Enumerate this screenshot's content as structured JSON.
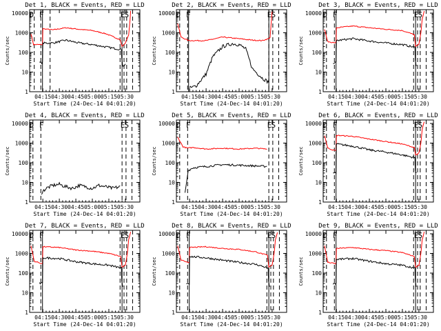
{
  "figure": {
    "x_tick_labels": [
      "04:15",
      "04:30",
      "04:45",
      "05:00",
      "05:15",
      "05:30"
    ],
    "y_tick_labels": [
      "1",
      "10",
      "100",
      "1000",
      "10000"
    ],
    "xlabel": "Start Time (24-Dec-14 04:01:20)",
    "ylabel": "Counts/sec",
    "colors": {
      "events": "#000000",
      "lld": "#ff0000",
      "frame": "#000000"
    }
  },
  "chart_data": [
    {
      "type": "line",
      "title": "Det 1, BLACK = Events, RED = LLD",
      "xlabel": "Start Time (24-Dec-14 04:01:20)",
      "ylabel": "Counts/sec",
      "xlim": [
        4.05,
        5.72
      ],
      "ylim": [
        1,
        15000
      ],
      "yscale": "log",
      "xticks": [
        4.25,
        4.5,
        4.75,
        5.0,
        5.25,
        5.5
      ],
      "region_labels": [
        {
          "text": "D",
          "x": 4.08
        },
        {
          "text": "F",
          "x": 4.23
        },
        {
          "text": "E",
          "x": 5.46
        },
        {
          "text": "S",
          "x": 5.52
        }
      ],
      "dashed_lines": [
        4.12,
        4.22,
        4.36,
        5.42,
        5.48,
        5.52,
        5.61
      ],
      "solid_lines": [
        4.245,
        5.45
      ],
      "series": [
        {
          "name": "LLD",
          "color": "#ff0000",
          "x": [
            4.07,
            4.11,
            4.245,
            4.25,
            4.4,
            4.6,
            4.8,
            5.0,
            5.2,
            5.42,
            5.45,
            5.5,
            5.55,
            5.57,
            5.58
          ],
          "y": [
            900,
            250,
            250,
            1600,
            1400,
            1800,
            1500,
            1300,
            900,
            450,
            200,
            300,
            800,
            4000,
            13000
          ]
        },
        {
          "name": "Events",
          "color": "#000000",
          "x": [
            4.2,
            4.245,
            4.25,
            4.4,
            4.6,
            4.8,
            5.0,
            5.2,
            5.44,
            5.445,
            5.46,
            5.5
          ],
          "y": [
            30,
            30,
            300,
            300,
            420,
            300,
            250,
            190,
            140,
            50,
            20,
            25
          ]
        }
      ]
    },
    {
      "type": "line",
      "title": "Det 2, BLACK = Events, RED = LLD",
      "xlabel": "Start Time (24-Dec-14 04:01:20)",
      "ylabel": "Counts/sec",
      "xlim": [
        4.05,
        5.72
      ],
      "ylim": [
        1,
        15000
      ],
      "yscale": "log",
      "xticks": [
        4.25,
        4.5,
        4.75,
        5.0,
        5.25,
        5.5
      ],
      "region_labels": [
        {
          "text": "D",
          "x": 4.08
        },
        {
          "text": "F",
          "x": 4.23
        },
        {
          "text": "E",
          "x": 5.46
        },
        {
          "text": "S",
          "x": 5.52
        }
      ],
      "dashed_lines": [
        4.1,
        4.22,
        5.45,
        5.51,
        5.6
      ],
      "solid_lines": [
        4.235,
        5.45
      ],
      "series": [
        {
          "name": "LLD",
          "color": "#ff0000",
          "x": [
            4.07,
            4.12,
            4.235,
            4.5,
            4.75,
            5.0,
            5.2,
            5.35,
            5.4,
            5.45,
            5.47,
            5.49,
            5.5
          ],
          "y": [
            3000,
            600,
            400,
            400,
            600,
            500,
            420,
            400,
            450,
            500,
            600,
            5000,
            12000
          ]
        },
        {
          "name": "Events",
          "color": "#000000",
          "x": [
            4.25,
            4.35,
            4.5,
            4.6,
            4.75,
            4.9,
            5.0,
            5.1,
            5.2,
            5.35,
            5.45
          ],
          "y": [
            1.5,
            2,
            8,
            60,
            200,
            280,
            250,
            150,
            15,
            5,
            3
          ]
        }
      ]
    },
    {
      "type": "line",
      "title": "Det 3, BLACK = Events, RED = LLD",
      "xlabel": "Start Time (24-Dec-14 04:01:20)",
      "ylabel": "Counts/sec",
      "xlim": [
        4.05,
        5.72
      ],
      "ylim": [
        1,
        15000
      ],
      "yscale": "log",
      "xticks": [
        4.25,
        4.5,
        4.75,
        5.0,
        5.25,
        5.5
      ],
      "region_labels": [
        {
          "text": "D",
          "x": 4.08
        },
        {
          "text": "F",
          "x": 4.23
        },
        {
          "text": "E",
          "x": 5.46
        },
        {
          "text": "S",
          "x": 5.52
        }
      ],
      "dashed_lines": [
        4.1,
        4.22,
        5.42,
        5.48,
        5.52,
        5.61
      ],
      "solid_lines": [
        4.245,
        5.45
      ],
      "series": [
        {
          "name": "LLD",
          "color": "#ff0000",
          "x": [
            4.07,
            4.12,
            4.245,
            4.25,
            4.5,
            4.75,
            5.0,
            5.25,
            5.43,
            5.45,
            5.5,
            5.53,
            5.55,
            5.58
          ],
          "y": [
            1500,
            350,
            300,
            1800,
            2200,
            1800,
            1500,
            1300,
            800,
            200,
            250,
            1000,
            5000,
            12000
          ]
        },
        {
          "name": "Events",
          "color": "#000000",
          "x": [
            4.2,
            4.245,
            4.25,
            4.5,
            4.75,
            5.0,
            5.25,
            5.44,
            5.445,
            5.46
          ],
          "y": [
            30,
            30,
            400,
            500,
            380,
            300,
            250,
            180,
            40,
            20
          ]
        }
      ]
    },
    {
      "type": "line",
      "title": "Det 4, BLACK = Events, RED = LLD",
      "xlabel": "Start Time (24-Dec-14 04:01:20)",
      "ylabel": "Counts/sec",
      "xlim": [
        4.05,
        5.72
      ],
      "ylim": [
        1,
        15000
      ],
      "yscale": "log",
      "xticks": [
        4.25,
        4.5,
        4.75,
        5.0,
        5.25,
        5.5
      ],
      "region_labels": [
        {
          "text": "D",
          "x": 4.08
        },
        {
          "text": "F",
          "x": 4.23
        },
        {
          "text": "E",
          "x": 5.46
        },
        {
          "text": "S",
          "x": 5.52
        }
      ],
      "dashed_lines": [
        4.1,
        4.22,
        5.45,
        5.51,
        5.6
      ],
      "solid_lines": [],
      "series": [
        {
          "name": "Events",
          "color": "#000000",
          "x": [
            4.23,
            4.3,
            4.4,
            4.5,
            4.6,
            4.7,
            4.8,
            4.9,
            5.0,
            5.1,
            5.2,
            5.3,
            5.42
          ],
          "y": [
            3,
            5,
            7,
            8,
            6,
            5,
            7,
            6,
            5,
            7,
            6,
            5,
            6
          ]
        }
      ]
    },
    {
      "type": "line",
      "title": "Det 5, BLACK = Events, RED = LLD",
      "xlabel": "Start Time (24-Dec-14 04:01:20)",
      "ylabel": "Counts/sec",
      "xlim": [
        4.05,
        5.72
      ],
      "ylim": [
        1,
        15000
      ],
      "yscale": "log",
      "xticks": [
        4.25,
        4.5,
        4.75,
        5.0,
        5.25,
        5.5
      ],
      "region_labels": [
        {
          "text": "D",
          "x": 4.08
        },
        {
          "text": "F",
          "x": 4.23
        },
        {
          "text": "E",
          "x": 5.46
        },
        {
          "text": "S",
          "x": 5.52
        }
      ],
      "dashed_lines": [
        4.1,
        4.22,
        5.45,
        5.51,
        5.6
      ],
      "solid_lines": [],
      "series": [
        {
          "name": "LLD",
          "color": "#ff0000",
          "x": [
            4.07,
            4.15,
            4.22,
            4.3,
            4.5,
            4.75,
            5.0,
            5.25,
            5.42
          ],
          "y": [
            2000,
            650,
            550,
            600,
            500,
            550,
            500,
            550,
            500
          ]
        },
        {
          "name": "Events",
          "color": "#000000",
          "x": [
            4.18,
            4.23,
            4.3,
            4.5,
            4.75,
            5.0,
            5.2,
            5.42
          ],
          "y": [
            3,
            40,
            55,
            65,
            80,
            75,
            70,
            65
          ]
        }
      ]
    },
    {
      "type": "line",
      "title": "Det 6, BLACK = Events, RED = LLD",
      "xlabel": "Start Time (24-Dec-14 04:01:20)",
      "ylabel": "Counts/sec",
      "xlim": [
        4.05,
        5.72
      ],
      "ylim": [
        1,
        15000
      ],
      "yscale": "log",
      "xticks": [
        4.25,
        4.5,
        4.75,
        5.0,
        5.25,
        5.5
      ],
      "region_labels": [
        {
          "text": "D",
          "x": 4.08
        },
        {
          "text": "F",
          "x": 4.23
        },
        {
          "text": "E",
          "x": 5.46
        },
        {
          "text": "S",
          "x": 5.52
        }
      ],
      "dashed_lines": [
        4.1,
        4.22,
        5.42,
        5.48,
        5.52,
        5.61
      ],
      "solid_lines": [
        4.245,
        5.45
      ],
      "series": [
        {
          "name": "LLD",
          "color": "#ff0000",
          "x": [
            4.07,
            4.12,
            4.245,
            4.25,
            4.5,
            4.75,
            5.0,
            5.25,
            5.43,
            5.45,
            5.5,
            5.53,
            5.55,
            5.58
          ],
          "y": [
            2500,
            550,
            400,
            2500,
            2200,
            1600,
            1200,
            900,
            600,
            250,
            300,
            1000,
            5000,
            12000
          ]
        },
        {
          "name": "Events",
          "color": "#000000",
          "x": [
            4.2,
            4.245,
            4.25,
            4.5,
            4.75,
            5.0,
            5.25,
            5.44,
            5.445,
            5.46
          ],
          "y": [
            30,
            30,
            900,
            700,
            450,
            350,
            250,
            180,
            40,
            30
          ]
        }
      ]
    },
    {
      "type": "line",
      "title": "Det 7, BLACK = Events, RED = LLD",
      "xlabel": "Start Time (24-Dec-14 04:01:20)",
      "ylabel": "Counts/sec",
      "xlim": [
        4.05,
        5.72
      ],
      "ylim": [
        1,
        15000
      ],
      "yscale": "log",
      "xticks": [
        4.25,
        4.5,
        4.75,
        5.0,
        5.25,
        5.5
      ],
      "region_labels": [
        {
          "text": "D",
          "x": 4.08
        },
        {
          "text": "F",
          "x": 4.23
        },
        {
          "text": "E",
          "x": 5.46
        },
        {
          "text": "S",
          "x": 5.52
        }
      ],
      "dashed_lines": [
        4.1,
        4.22,
        5.42,
        5.48,
        5.52,
        5.61
      ],
      "solid_lines": [
        4.245,
        5.45
      ],
      "series": [
        {
          "name": "LLD",
          "color": "#ff0000",
          "x": [
            4.07,
            4.12,
            4.245,
            4.25,
            4.5,
            4.75,
            5.0,
            5.25,
            5.43,
            5.45,
            5.5,
            5.53,
            5.55,
            5.58
          ],
          "y": [
            2500,
            400,
            300,
            2200,
            2000,
            1500,
            1300,
            1000,
            700,
            200,
            250,
            1000,
            5000,
            12000
          ]
        },
        {
          "name": "Events",
          "color": "#000000",
          "x": [
            4.2,
            4.245,
            4.25,
            4.5,
            4.75,
            5.0,
            5.25,
            5.44,
            5.445,
            5.46
          ],
          "y": [
            30,
            30,
            600,
            550,
            380,
            300,
            250,
            180,
            40,
            20
          ]
        }
      ]
    },
    {
      "type": "line",
      "title": "Det 8, BLACK = Events, RED = LLD",
      "xlabel": "Start Time (24-Dec-14 04:01:20)",
      "ylabel": "Counts/sec",
      "xlim": [
        4.05,
        5.72
      ],
      "ylim": [
        1,
        15000
      ],
      "yscale": "log",
      "xticks": [
        4.25,
        4.5,
        4.75,
        5.0,
        5.25,
        5.5
      ],
      "region_labels": [
        {
          "text": "D",
          "x": 4.08
        },
        {
          "text": "F",
          "x": 4.23
        },
        {
          "text": "E",
          "x": 5.46
        },
        {
          "text": "S",
          "x": 5.52
        }
      ],
      "dashed_lines": [
        4.1,
        4.22,
        5.42,
        5.48,
        5.52,
        5.61
      ],
      "solid_lines": [
        4.245,
        5.45
      ],
      "series": [
        {
          "name": "LLD",
          "color": "#ff0000",
          "x": [
            4.07,
            4.12,
            4.245,
            4.25,
            4.5,
            4.75,
            5.0,
            5.25,
            5.43,
            5.45,
            5.5,
            5.53,
            5.55,
            5.58
          ],
          "y": [
            2500,
            450,
            350,
            2000,
            2200,
            1800,
            1600,
            1200,
            800,
            200,
            250,
            1000,
            5000,
            12000
          ]
        },
        {
          "name": "Events",
          "color": "#000000",
          "x": [
            4.2,
            4.245,
            4.25,
            4.5,
            4.75,
            5.0,
            5.25,
            5.44,
            5.445,
            5.46
          ],
          "y": [
            30,
            30,
            700,
            600,
            450,
            350,
            280,
            180,
            40,
            20
          ]
        }
      ]
    },
    {
      "type": "line",
      "title": "Det 9, BLACK = Events, RED = LLD",
      "xlabel": "Start Time (24-Dec-14 04:01:20)",
      "ylabel": "Counts/sec",
      "xlim": [
        4.05,
        5.72
      ],
      "ylim": [
        1,
        15000
      ],
      "yscale": "log",
      "xticks": [
        4.25,
        4.5,
        4.75,
        5.0,
        5.25,
        5.5
      ],
      "region_labels": [
        {
          "text": "D",
          "x": 4.08
        },
        {
          "text": "F",
          "x": 4.23
        },
        {
          "text": "E",
          "x": 5.46
        },
        {
          "text": "S",
          "x": 5.52
        }
      ],
      "dashed_lines": [
        4.1,
        4.22,
        5.42,
        5.48,
        5.52,
        5.61
      ],
      "solid_lines": [
        4.245,
        5.45
      ],
      "series": [
        {
          "name": "LLD",
          "color": "#ff0000",
          "x": [
            4.07,
            4.12,
            4.245,
            4.25,
            4.5,
            4.75,
            5.0,
            5.25,
            5.43,
            5.45,
            5.5,
            5.53,
            5.55,
            5.58
          ],
          "y": [
            2500,
            350,
            300,
            1800,
            2000,
            1600,
            1400,
            1100,
            700,
            200,
            250,
            1000,
            5000,
            12000
          ]
        },
        {
          "name": "Events",
          "color": "#000000",
          "x": [
            4.2,
            4.245,
            4.25,
            4.5,
            4.75,
            5.0,
            5.25,
            5.44,
            5.445,
            5.46
          ],
          "y": [
            30,
            30,
            500,
            550,
            400,
            300,
            250,
            180,
            40,
            20
          ]
        }
      ]
    }
  ]
}
